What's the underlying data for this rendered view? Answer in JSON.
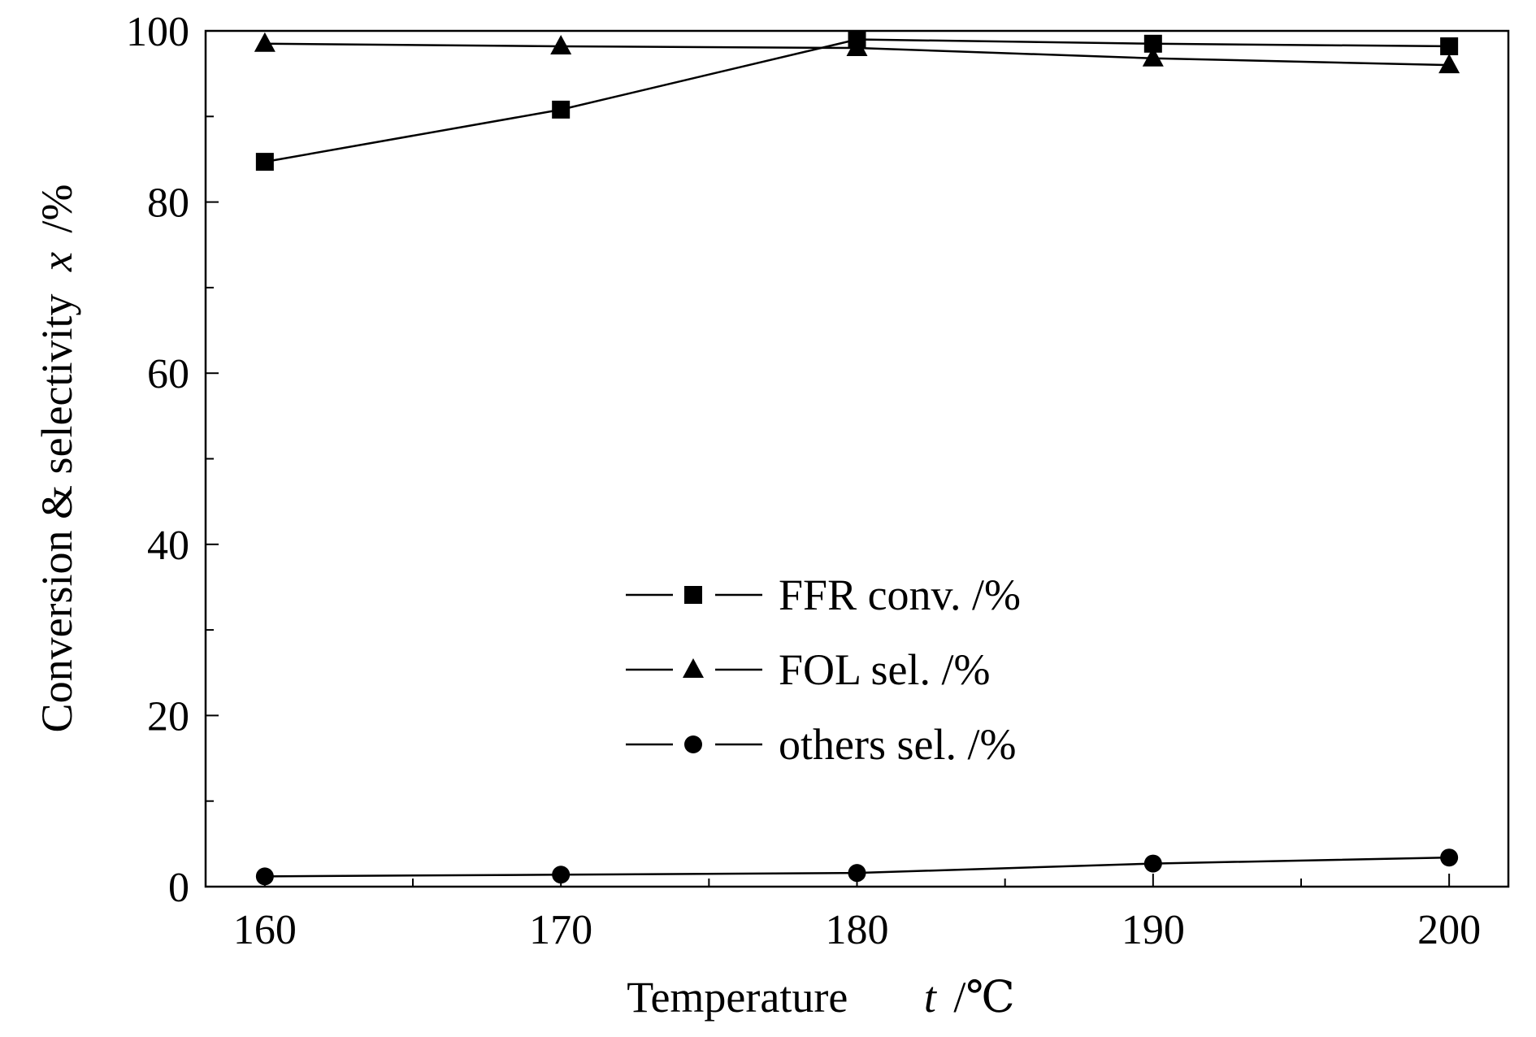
{
  "chart_data": {
    "type": "line",
    "title": "",
    "x": [
      160,
      170,
      180,
      190,
      200
    ],
    "xlabel": "Temperature",
    "xlabel_var": "t",
    "xlabel_unit": "/℃",
    "ylabel": "Conversion & selectivity",
    "ylabel_var": "x",
    "ylabel_unit": "/%",
    "xlim": [
      158,
      202
    ],
    "ylim": [
      0,
      100
    ],
    "xticks": [
      160,
      170,
      180,
      190,
      200
    ],
    "xtick_labels": [
      "160",
      "170",
      "180",
      "190",
      "200"
    ],
    "yticks": [
      0,
      20,
      40,
      60,
      80,
      100
    ],
    "ytick_labels": [
      "0",
      "20",
      "40",
      "60",
      "80",
      "100"
    ],
    "minor_xticks": [
      165,
      175,
      185,
      195
    ],
    "minor_yticks": [
      10,
      30,
      50,
      70,
      90
    ],
    "grid": false,
    "legend_position": "center",
    "series": [
      {
        "name": "FFR conv. /%",
        "marker": "square",
        "values": [
          84.7,
          90.8,
          99.0,
          98.5,
          98.2
        ]
      },
      {
        "name": "FOL sel. /%",
        "marker": "triangle",
        "values": [
          98.5,
          98.2,
          98.0,
          96.8,
          96.0
        ]
      },
      {
        "name": "others sel. /%",
        "marker": "circle",
        "values": [
          1.2,
          1.4,
          1.6,
          2.7,
          3.4
        ]
      }
    ],
    "colors": {
      "line": "#000000",
      "marker": "#000000"
    }
  }
}
